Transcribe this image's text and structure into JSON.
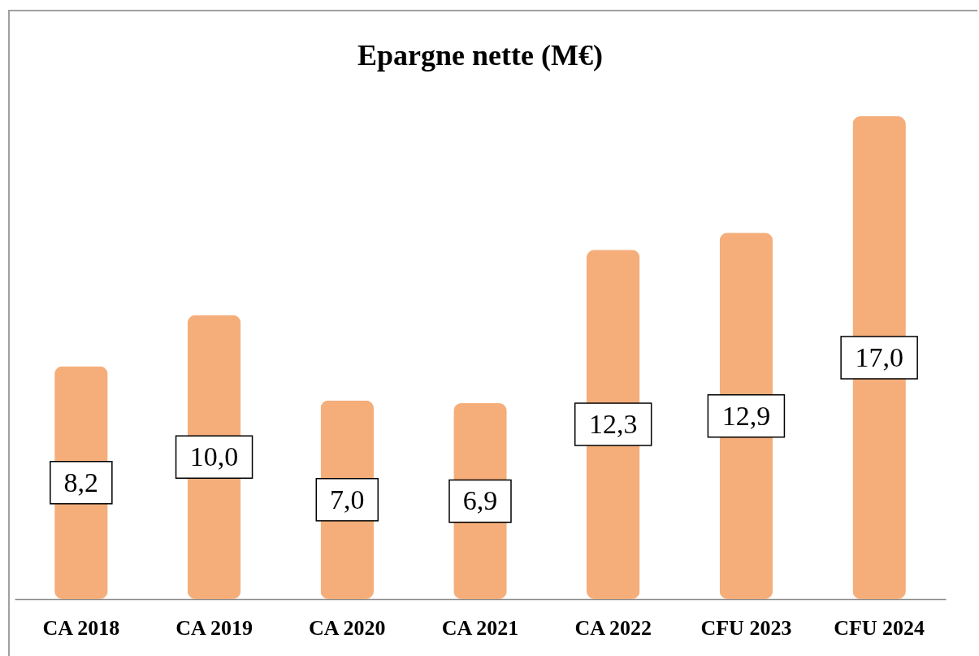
{
  "chart_data": {
    "type": "bar",
    "title": "Epargne nette (M€)",
    "categories": [
      "CA 2018",
      "CA 2019",
      "CA 2020",
      "CA 2021",
      "CA 2022",
      "CFU 2023",
      "CFU 2024"
    ],
    "values": [
      8.2,
      10.0,
      7.0,
      6.9,
      12.3,
      12.9,
      17.0
    ],
    "value_labels": [
      "8,2",
      "10,0",
      "7,0",
      "6,9",
      "12,3",
      "12,9",
      "17,0"
    ],
    "color": "#f5ae7a"
  }
}
